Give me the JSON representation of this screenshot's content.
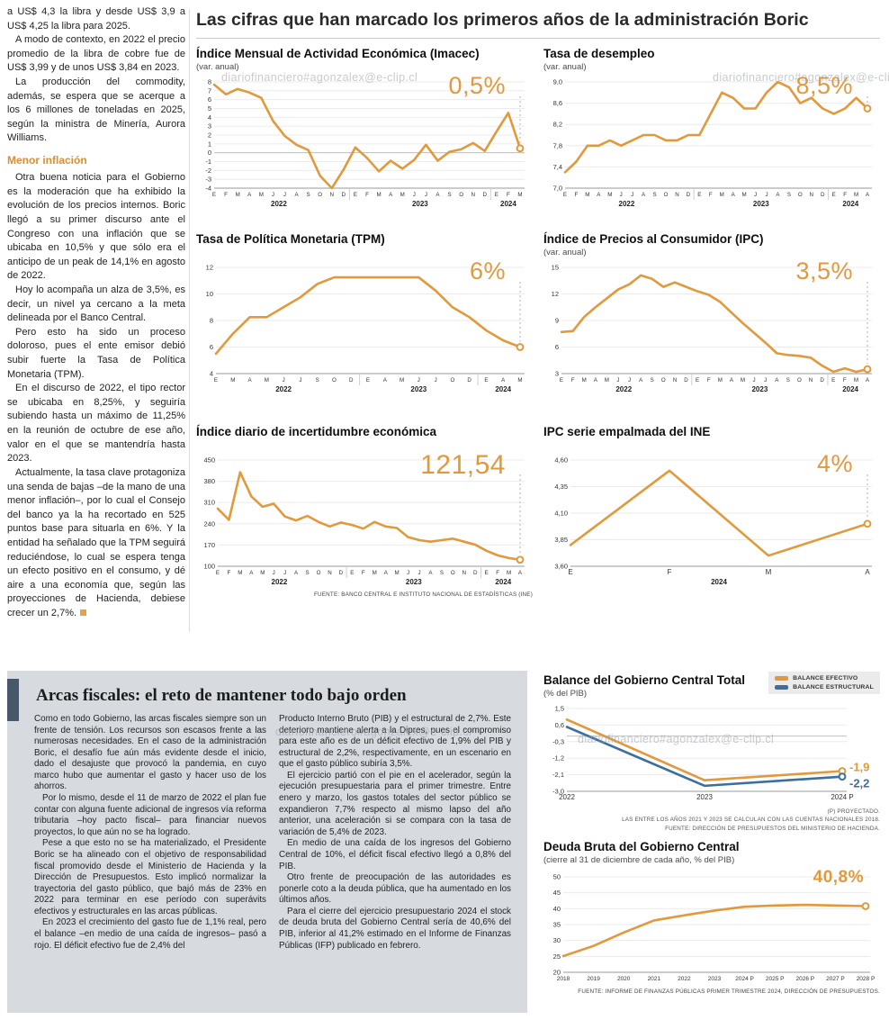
{
  "watermark": "diariofinanciero#agonzalex@e-clip.cl",
  "main_title": "Las cifras que han marcado los primeros años de la administración Boric",
  "colors": {
    "line_orange": "#E2993B",
    "line_blue": "#3C6E9F",
    "subhead_orange": "#D98F33",
    "panel_gray": "#D7DBE0",
    "accent_bar": "#47586A"
  },
  "left_article": {
    "intro_paragraphs": [
      "a US$ 4,3 la libra y desde US$ 3,9 a US$ 4,25 la libra para 2025.",
      "A modo de contexto, en 2022 el precio promedio de la libra de cobre fue de US$ 3,99 y de unos US$ 3,84 en 2023.",
      "La producción del commodity, además, se espera que se acerque a los 6 millones de toneladas en 2025, según la ministra de Minería, Aurora Williams."
    ],
    "subheading": "Menor inflación",
    "body_paragraphs": [
      "Otra buena noticia para el Gobierno es la moderación que ha exhibido la evolución de los precios internos. Boric llegó a su primer discurso ante el Congreso con una inflación que se ubicaba en 10,5% y que sólo era el anticipo de un peak de 14,1% en agosto de 2022.",
      "Hoy lo acompaña un alza de 3,5%, es decir, un nivel ya cercano a la meta delineada por el Banco Central.",
      "Pero esto ha sido un proceso doloroso, pues el ente emisor debió subir fuerte la Tasa de Política Monetaria (TPM).",
      "En el discurso de 2022, el tipo rector se ubicaba en 8,25%, y seguiría subiendo hasta un máximo de 11,25% en la reunión de octubre de ese año, valor en el que se mantendría hasta 2023.",
      "Actualmente, la tasa clave protagoniza una senda de bajas –de la mano de una menor inflación–, por lo cual el Consejo del banco ya la ha recortado en 525 puntos base para situarla en 6%. Y la entidad ha señalado que la TPM seguirá reduciéndose, lo cual se espera tenga un efecto positivo en el consumo, y dé aire a una economía que, según las proyecciones de Hacienda, debiese crecer un 2,7%."
    ]
  },
  "fiscal_article": {
    "title": "Arcas fiscales: el reto de mantener todo bajo orden",
    "column1_paragraphs": [
      "Como en todo Gobierno, las arcas fiscales siempre son un frente de tensión. Los recursos son escasos frente a las numerosas necesidades. En el caso de la administración Boric, el desafío fue aún más evidente desde el inicio, dado el desajuste que provocó la pandemia, en cuyo marco hubo que aumentar el gasto y hacer uso de los ahorros.",
      "Por lo mismo, desde el 11 de marzo de 2022 el plan fue contar con alguna fuente adicional de ingresos vía reforma tributaria –hoy pacto fiscal– para financiar nuevos proyectos, lo que aún no se ha logrado.",
      "Pese a que esto no se ha materializado, el Presidente Boric se ha alineado con el objetivo de responsabilidad fiscal promovido desde el Ministerio de Hacienda y la Dirección de Presupuestos. Esto implicó normalizar la trayectoria del gasto público, que bajó más de 23% en 2022 para terminar en ese período con superávits efectivos y estructurales en las arcas públicas.",
      "En 2023 el crecimiento del gasto fue de 1,1% real, pero el balance –en medio de una caída de ingresos– pasó a rojo. El déficit efectivo fue de 2,4% del"
    ],
    "column2_paragraphs": [
      "Producto Interno Bruto (PIB) y el estructural de 2,7%. Este deterioro mantiene alerta a la Dipres, pues el compromiso para este año es de un déficit efectivo de 1,9% del PIB y estructural de 2,2%, respectivamente, en un escenario en que el gasto público subiría 3,5%.",
      "El ejercicio partió con el pie en el acelerador, según la ejecución presupuestaria para el primer trimestre. Entre enero y marzo, los gastos totales del sector público se expandieron 7,7% respecto al mismo lapso del año anterior, una aceleración si se compara con la tasa de variación de 5,4% de 2023.",
      "En medio de una caída de los ingresos del Gobierno Central de 10%, el déficit fiscal efectivo llegó a 0,8% del PIB.",
      "Otro frente de preocupación de las autoridades es ponerle coto a la deuda pública, que ha aumentado en los últimos años.",
      "Para el cierre del ejercicio presupuestario 2024 el stock de deuda bruta del Gobierno Central sería de 40,6% del PIB, inferior al 41,2% estimado en el Informe de Finanzas Públicas (IFP) publicado en febrero."
    ]
  },
  "chart_data": [
    {
      "id": "imacec",
      "type": "line",
      "title": "Índice Mensual de Actividad Económica (Imacec)",
      "subtitle": "(var. anual)",
      "big_label": "0,5%",
      "ylim": [
        -4,
        8
      ],
      "ytick_values": [
        8,
        7,
        6,
        5,
        4,
        3,
        2,
        1,
        0,
        -1,
        -2,
        -3,
        -4
      ],
      "ytick_labels": [
        "8",
        "7",
        "6",
        "5",
        "4",
        "3",
        "2",
        "1",
        "0",
        "-1",
        "-2",
        "-3",
        "-4"
      ],
      "x_labels": [
        "E",
        "F",
        "M",
        "A",
        "M",
        "J",
        "J",
        "A",
        "S",
        "O",
        "N",
        "D",
        "E",
        "F",
        "M",
        "A",
        "M",
        "J",
        "J",
        "A",
        "S",
        "O",
        "N",
        "D",
        "E",
        "F",
        "M"
      ],
      "year_groups": [
        {
          "label": "2022",
          "span": 12
        },
        {
          "label": "2023",
          "span": 12
        },
        {
          "label": "2024",
          "span": 3
        }
      ],
      "leader": true,
      "series": [
        {
          "name": "Imacec",
          "color": "#E2993B",
          "values": [
            7.7,
            6.6,
            7.2,
            6.8,
            6.2,
            3.6,
            1.9,
            0.9,
            0.3,
            -2.6,
            -4.0,
            -1.9,
            0.6,
            -0.6,
            -2.1,
            -0.9,
            -1.8,
            -0.8,
            0.9,
            -0.9,
            0.1,
            0.4,
            1.1,
            0.2,
            2.4,
            4.5,
            0.5
          ]
        }
      ]
    },
    {
      "id": "desempleo",
      "type": "line",
      "title": "Tasa de desempleo",
      "subtitle": "(var. anual)",
      "big_label": "8,5%",
      "ylim": [
        7.0,
        9.0
      ],
      "ytick_values": [
        9.0,
        8.6,
        8.2,
        7.8,
        7.4,
        7.0
      ],
      "ytick_labels": [
        "9,0",
        "8,6",
        "8,2",
        "7,8",
        "7,4",
        "7,0"
      ],
      "x_labels": [
        "E",
        "F",
        "M",
        "A",
        "M",
        "J",
        "J",
        "A",
        "S",
        "O",
        "N",
        "D",
        "E",
        "F",
        "M",
        "A",
        "M",
        "J",
        "J",
        "A",
        "S",
        "O",
        "N",
        "D",
        "E",
        "F",
        "M",
        "A"
      ],
      "year_groups": [
        {
          "label": "2022",
          "span": 12
        },
        {
          "label": "2023",
          "span": 12
        },
        {
          "label": "2024",
          "span": 4
        }
      ],
      "leader": true,
      "series": [
        {
          "name": "Tasa de desempleo",
          "color": "#E2993B",
          "values": [
            7.3,
            7.5,
            7.8,
            7.8,
            7.9,
            7.8,
            7.9,
            8.0,
            8.0,
            7.9,
            7.9,
            8.0,
            8.0,
            8.4,
            8.8,
            8.7,
            8.5,
            8.5,
            8.8,
            9.0,
            8.9,
            8.6,
            8.7,
            8.5,
            8.4,
            8.5,
            8.7,
            8.5
          ]
        }
      ]
    },
    {
      "id": "tpm",
      "type": "line",
      "title": "Tasa de Política Monetaria (TPM)",
      "subtitle": "",
      "big_label": "6%",
      "ylim": [
        4,
        12
      ],
      "ytick_values": [
        12,
        10,
        8,
        6,
        4
      ],
      "ytick_labels": [
        "12",
        "10",
        "8",
        "6",
        "4"
      ],
      "x_labels": [
        "E",
        "M",
        "A",
        "M",
        "J",
        "J",
        "S",
        "O",
        "D",
        "E",
        "A",
        "M",
        "J",
        "J",
        "O",
        "D",
        "E",
        "A",
        "M"
      ],
      "year_groups": [
        {
          "label": "2022",
          "span": 9
        },
        {
          "label": "2023",
          "span": 7
        },
        {
          "label": "2024",
          "span": 3
        }
      ],
      "leader": true,
      "series": [
        {
          "name": "TPM",
          "color": "#E2993B",
          "values": [
            5.5,
            7.0,
            8.25,
            8.25,
            9.0,
            9.75,
            10.75,
            11.25,
            11.25,
            11.25,
            11.25,
            11.25,
            11.25,
            10.25,
            9.0,
            8.25,
            7.25,
            6.5,
            6.0
          ]
        }
      ]
    },
    {
      "id": "ipc",
      "type": "line",
      "title": "Índice de Precios al Consumidor (IPC)",
      "subtitle": "(var. anual)",
      "big_label": "3,5%",
      "ylim": [
        3,
        15
      ],
      "ytick_values": [
        15,
        12,
        9,
        6,
        3
      ],
      "ytick_labels": [
        "15",
        "12",
        "9",
        "6",
        "3"
      ],
      "x_labels": [
        "E",
        "F",
        "M",
        "A",
        "M",
        "J",
        "J",
        "A",
        "S",
        "O",
        "N",
        "D",
        "E",
        "F",
        "M",
        "A",
        "M",
        "J",
        "J",
        "A",
        "S",
        "O",
        "N",
        "D",
        "E",
        "F",
        "M",
        "A"
      ],
      "year_groups": [
        {
          "label": "2022",
          "span": 12
        },
        {
          "label": "2023",
          "span": 12
        },
        {
          "label": "2024",
          "span": 4
        }
      ],
      "leader": true,
      "series": [
        {
          "name": "IPC",
          "color": "#E2993B",
          "values": [
            7.7,
            7.8,
            9.4,
            10.5,
            11.5,
            12.5,
            13.1,
            14.1,
            13.7,
            12.8,
            13.3,
            12.8,
            12.3,
            11.9,
            11.1,
            9.9,
            8.7,
            7.6,
            6.5,
            5.3,
            5.1,
            5.0,
            4.8,
            3.9,
            3.2,
            3.6,
            3.2,
            3.5
          ]
        }
      ]
    },
    {
      "id": "incertidumbre",
      "type": "line",
      "title": "Índice diario de incertidumbre económica",
      "subtitle": "",
      "big_label": "121,54",
      "ylim": [
        100,
        450
      ],
      "ytick_values": [
        450,
        380,
        310,
        240,
        170,
        100
      ],
      "ytick_labels": [
        "450",
        "380",
        "310",
        "240",
        "170",
        "100"
      ],
      "x_labels": [
        "E",
        "F",
        "M",
        "A",
        "M",
        "J",
        "J",
        "A",
        "S",
        "O",
        "N",
        "D",
        "E",
        "F",
        "M",
        "A",
        "M",
        "J",
        "J",
        "A",
        "S",
        "O",
        "N",
        "D",
        "E",
        "F",
        "M",
        "A"
      ],
      "year_groups": [
        {
          "label": "2022",
          "span": 12
        },
        {
          "label": "2023",
          "span": 12
        },
        {
          "label": "2024",
          "span": 4
        }
      ],
      "leader": true,
      "source": "FUENTE: BANCO CENTRAL E INSTITUTO NACIONAL DE ESTADÍSTICAS (INE)",
      "series": [
        {
          "name": "Incertidumbre económica",
          "color": "#E2993B",
          "values": [
            290,
            253,
            410,
            330,
            296,
            306,
            264,
            251,
            266,
            246,
            231,
            244,
            236,
            224,
            246,
            231,
            226,
            196,
            186,
            181,
            186,
            191,
            181,
            171,
            151,
            136,
            127,
            121.54
          ]
        }
      ]
    },
    {
      "id": "ipc_empalmada",
      "type": "line",
      "title": "IPC serie empalmada del INE",
      "subtitle": "",
      "big_label": "4%",
      "ylim": [
        3.6,
        4.6
      ],
      "ytick_values": [
        4.6,
        4.35,
        4.1,
        3.85,
        3.6
      ],
      "ytick_labels": [
        "4,60",
        "4,35",
        "4,10",
        "3,85",
        "3,60"
      ],
      "x_labels": [
        "E",
        "F",
        "M",
        "A"
      ],
      "year_groups": [
        {
          "label": "2024",
          "span": 4
        }
      ],
      "leader": true,
      "series": [
        {
          "name": "IPC serie empalmada",
          "color": "#E2993B",
          "values": [
            3.8,
            4.5,
            3.7,
            4.0
          ]
        }
      ]
    },
    {
      "id": "balance_gobierno_central",
      "type": "line",
      "title": "Balance del Gobierno Central Total",
      "subtitle": "(% del PIB)",
      "ylim": [
        -3.0,
        1.5
      ],
      "ytick_values": [
        1.5,
        0.6,
        -0.3,
        -1.2,
        -2.1,
        -3.0
      ],
      "ytick_labels": [
        "1,5",
        "0,6",
        "-0,3",
        "-1,2",
        "-2,1",
        "-3,0"
      ],
      "x_labels": [
        "2022",
        "2023",
        "2024 P"
      ],
      "leader": false,
      "footnotes": [
        "(P) PROYECTADO.",
        "LAS ENTRE LOS AÑOS 2021 Y 2023 SE CALCULAN CON LAS CUENTAS NACIONALES 2018.",
        "FUENTE: DIRECCIÓN DE PRESUPUESTOS DEL MINISTERIO DE HACIENDA."
      ],
      "series": [
        {
          "name": "BALANCE EFECTIVO",
          "color": "#E2993B",
          "values": [
            0.9,
            -2.4,
            -1.9
          ],
          "end_label": "-1,9"
        },
        {
          "name": "BALANCE ESTRUCTURAL",
          "color": "#3C6E9F",
          "values": [
            0.5,
            -2.7,
            -2.2
          ],
          "end_label": "-2,2"
        }
      ]
    },
    {
      "id": "deuda_bruta",
      "type": "line",
      "title": "Deuda Bruta del Gobierno Central",
      "subtitle": "(cierre al 31 de diciembre de cada año, % del PIB)",
      "big_label": "40,8%",
      "ylim": [
        20,
        50
      ],
      "ytick_values": [
        50,
        45,
        40,
        35,
        30,
        25,
        20
      ],
      "ytick_labels": [
        "50",
        "45",
        "40",
        "35",
        "30",
        "25",
        "20"
      ],
      "x_labels": [
        "2018",
        "2019",
        "2020",
        "2021",
        "2022",
        "2023",
        "2024 P",
        "2025 P",
        "2026 P",
        "2027 P",
        "2028 P"
      ],
      "leader": false,
      "source": "FUENTE: INFORME DE FINANZAS PÚBLICAS PRIMER TRIMESTRE 2024, DIRECCIÓN DE PRESUPUESTOS.",
      "series": [
        {
          "name": "Deuda bruta",
          "color": "#E2993B",
          "values": [
            25.1,
            28.3,
            32.5,
            36.3,
            37.9,
            39.4,
            40.6,
            41.0,
            41.2,
            41.0,
            40.8
          ]
        }
      ]
    }
  ]
}
